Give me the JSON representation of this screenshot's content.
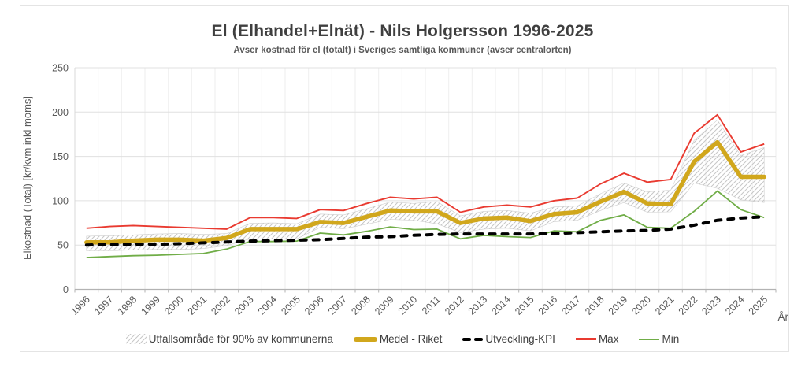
{
  "header": {
    "title": "El (Elhandel+Elnät) - Nils Holgersson 1996-2025",
    "subtitle": "Avser kostnad för el (totalt) i Sveriges samtliga kommuner (avser centralorten)"
  },
  "chart_data": {
    "type": "line",
    "title": "El (Elhandel+Elnät) - Nils Holgersson 1996-2025",
    "subtitle": "Avser kostnad för el (totalt) i Sveriges samtliga kommuner (avser centralorten)",
    "xlabel": "År",
    "ylabel": "Elkostnad (Total) [kr/kvm inkl moms]",
    "ylim": [
      0,
      250
    ],
    "yticks": [
      0,
      50,
      100,
      150,
      200,
      250
    ],
    "grid": true,
    "legend_position": "bottom",
    "x": [
      "1996",
      "1997",
      "1998",
      "1999",
      "2000",
      "2001",
      "2002",
      "2003",
      "2004",
      "2005",
      "2006",
      "2007",
      "2008",
      "2009",
      "2010",
      "2011",
      "2012",
      "2013",
      "2014",
      "2015",
      "2016",
      "2017",
      "2018",
      "2019",
      "2020",
      "2021",
      "2022",
      "2023",
      "2024",
      "2025"
    ],
    "colors": {
      "max": "#e93a30",
      "min": "#70ad47",
      "medel": "#d1a71c",
      "kpi": "#000000",
      "hatch": "#c6c6c6",
      "grid_h": "#e0e0e0",
      "grid_v": "#eeeeee",
      "axis": "#b3b3b3",
      "tick_text": "#595959"
    },
    "series": [
      {
        "name": "Utfallsområde för 90% av kommunerna",
        "type": "band",
        "upper": [
          60,
          60.5,
          61.5,
          62.5,
          63,
          62,
          63,
          74.5,
          75,
          74,
          85,
          84,
          91,
          98.5,
          97,
          99,
          83,
          88,
          89,
          86,
          93,
          94,
          108,
          120,
          110,
          112,
          168,
          191,
          151,
          160
        ],
        "lower": [
          43.5,
          43.5,
          44.5,
          45,
          45,
          46,
          49.5,
          57,
          57,
          57,
          70,
          68.5,
          73.5,
          79,
          78,
          74,
          64,
          68,
          69,
          66,
          76.5,
          78,
          89,
          98,
          87,
          87.5,
          120,
          114,
          101,
          98
        ]
      },
      {
        "name": "Medel - Riket",
        "type": "line",
        "values": [
          53,
          53,
          55,
          56,
          56,
          55,
          58,
          68,
          68,
          68,
          76,
          75,
          82,
          89,
          88,
          88,
          75,
          80,
          81,
          77,
          85,
          87,
          99,
          110,
          97,
          96,
          144,
          166,
          127,
          127
        ]
      },
      {
        "name": "Utveckling-KPI",
        "type": "line",
        "dashed": true,
        "values": [
          50,
          50.5,
          51,
          51,
          51.5,
          52.5,
          53.5,
          54.5,
          55,
          55.5,
          56,
          57.5,
          59,
          59.5,
          61,
          62,
          62.5,
          62.5,
          62.5,
          62.5,
          63,
          64,
          65,
          66,
          66.5,
          68,
          72.5,
          78,
          80.5,
          82
        ]
      },
      {
        "name": "Max",
        "type": "line",
        "values": [
          69,
          71,
          72,
          71,
          70,
          69,
          68,
          81,
          81,
          80,
          90,
          89,
          97,
          104,
          102,
          104,
          87,
          93,
          95,
          93,
          100,
          103,
          119,
          131,
          121,
          124,
          176,
          197,
          155,
          164
        ]
      },
      {
        "name": "Min",
        "type": "line",
        "values": [
          36,
          37,
          38,
          38.5,
          39.5,
          40.5,
          45.5,
          54,
          54,
          54.5,
          63.5,
          61.5,
          65.5,
          70.5,
          67.5,
          68,
          57,
          61,
          59.5,
          58.5,
          66,
          65,
          78,
          84,
          70,
          69,
          88,
          111,
          90,
          81
        ]
      }
    ]
  }
}
